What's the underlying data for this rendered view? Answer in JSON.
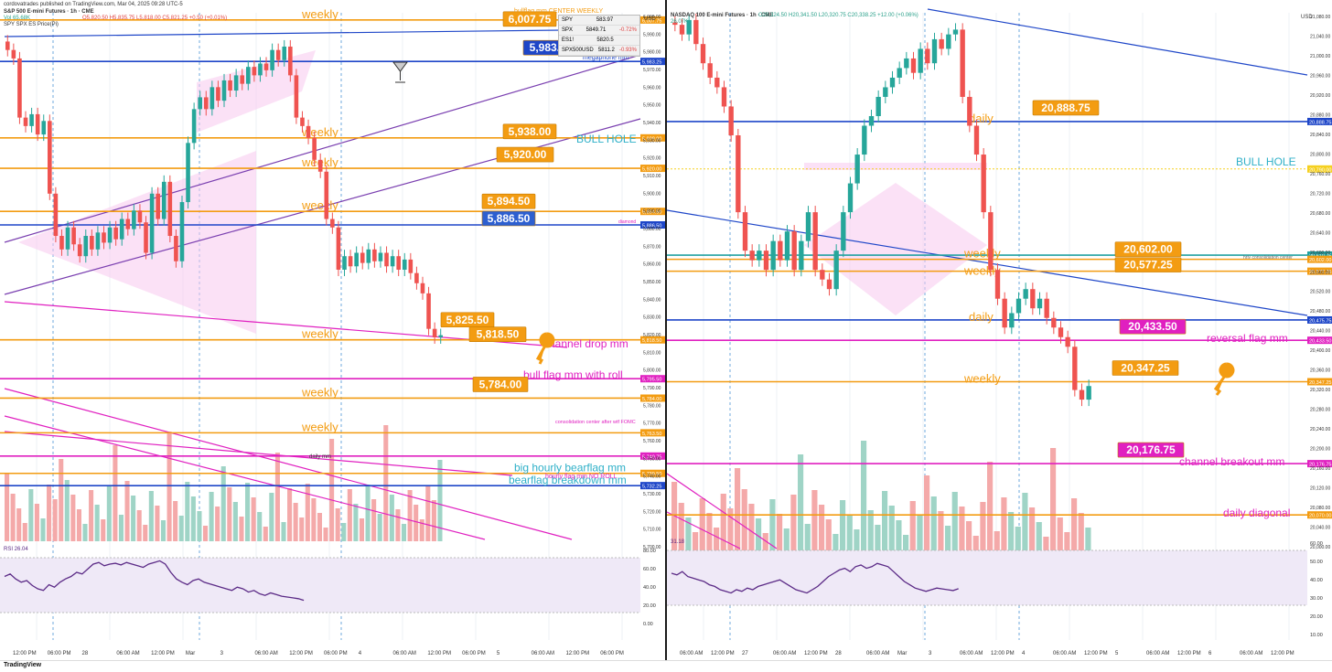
{
  "window": {
    "brand": "TradingView"
  },
  "left": {
    "published": "cordovatrades published on TradingView.com, Mar 04, 2025 09:28 UTC-5",
    "title": "S&P 500 E-mini Futures · 1h · CME",
    "ohlc": "O5,820.50 H5,835.75 L5,818.00 C5,821.25 +0.50 (+0.01%)",
    "vol": "Vol 65.68K",
    "overlay": "SPY SPX ES Price(Pi)",
    "currency": "USD",
    "rsi_label": "RSI 26.04",
    "mini_table": [
      {
        "sym": "SPY",
        "val": "583.97",
        "chg": ""
      },
      {
        "sym": "SPX",
        "val": "5849.71",
        "chg": "-0.72%"
      },
      {
        "sym": "ES1!",
        "val": "5820.5",
        "chg": ""
      },
      {
        "sym": "SPX500USD",
        "val": "5811.2",
        "chg": "-0.93%"
      }
    ],
    "annotations": {
      "top": "bullflag mm CENTER WEEKLY",
      "megaphone": "megaphone mm",
      "bull_hole": "BULL HOLE",
      "diamond": "diamond",
      "channel_drop": "channel drop mm",
      "bull_flag": "bull flag mm with roll",
      "consolidation": "consolidation center after wtf FOMC",
      "daily_mm": "daily mm",
      "big_bearflag": "big hourly bearflag mm",
      "hourly_flag": "hourly flag mm NO ROLL",
      "bearflag_breakdown": "bearflag breakdown mm",
      "weekly": "weekly"
    },
    "callouts": [
      "6,007.75",
      "5,983.25",
      "5,938.00",
      "5,920.00",
      "5,894.50",
      "5,886.50",
      "5,825.50",
      "5,818.50",
      "5,784.00"
    ],
    "axis_ticks": [
      "12:00 PM",
      "06:00 PM",
      "28",
      "06:00 AM",
      "12:00 PM",
      "Mar",
      "3",
      "06:00 AM",
      "12:00 PM",
      "06:00 PM",
      "4",
      "06:00 AM",
      "12:00 PM",
      "06:00 PM",
      "5",
      "06:00 AM",
      "12:00 PM",
      "06:00 PM"
    ],
    "price_ticks": [
      "6,000.00",
      "5,990.00",
      "5,980.00",
      "5,970.00",
      "5,960.00",
      "5,950.00",
      "5,940.00",
      "5,930.00",
      "5,920.00",
      "5,910.00",
      "5,900.00",
      "5,890.00",
      "5,880.00",
      "5,870.00",
      "5,860.00",
      "5,850.00",
      "5,840.00",
      "5,830.00",
      "5,820.00",
      "5,810.00",
      "5,800.00",
      "5,790.00",
      "5,780.00",
      "5,770.00",
      "5,760.00",
      "5,750.00",
      "5,740.00",
      "5,730.00",
      "5,720.00",
      "5,710.00",
      "5,700.00"
    ],
    "rsi_ticks": [
      "80.00",
      "60.00",
      "40.00",
      "20.00",
      "0.00"
    ]
  },
  "right": {
    "title": "NASDAQ 100 E-mini Futures · 1h · CME",
    "ohlc": "O20,324.50 H20,341.50 L20,320.75 C20,338.25 +12.00 (+0.06%)",
    "vol": "26.07K",
    "currency": "USD",
    "rsi_label": "31.18",
    "annotations": {
      "daily": "daily",
      "weekly": "weekly",
      "bull_hole": "BULL HOLE",
      "reversal": "reversal flag mm",
      "channel_breakout": "channel breakout mm",
      "daily_diagonal": "daily diagonal",
      "consolidation": "hrly consolidation center"
    },
    "callouts": [
      "20,888.75",
      "20,602.00",
      "20,577.25",
      "20,433.50",
      "20,347.25",
      "20,176.75"
    ],
    "axis_ticks": [
      "06:00 AM",
      "12:00 PM",
      "27",
      "06:00 AM",
      "12:00 PM",
      "28",
      "06:00 AM",
      "Mar",
      "3",
      "06:00 AM",
      "12:00 PM",
      "4",
      "06:00 AM",
      "12:00 PM",
      "5",
      "06:00 AM",
      "12:00 PM",
      "6",
      "06:00 AM",
      "12:00 PM"
    ],
    "price_ticks": [
      "21,080.00",
      "21,040.00",
      "21,000.00",
      "20,960.00",
      "20,920.00",
      "20,880.00",
      "20,840.00",
      "20,800.00",
      "20,760.00",
      "20,720.00",
      "20,680.00",
      "20,640.00",
      "20,600.00",
      "20,560.00",
      "20,520.00",
      "20,480.00",
      "20,440.00",
      "20,400.00",
      "20,360.00",
      "20,320.00",
      "20,280.00",
      "20,240.00",
      "20,200.00",
      "20,160.00",
      "20,120.00",
      "20,080.00",
      "20,040.00",
      "20,000.00"
    ],
    "rsi_ticks": [
      "60.00",
      "50.00",
      "40.00",
      "30.00",
      "20.00",
      "10.00"
    ]
  },
  "chart_data": [
    {
      "type": "candlestick",
      "title": "S&P 500 E-mini Futures · 1h · CME",
      "ylim": [
        5695,
        6012
      ],
      "levels": [
        {
          "label": "weekly",
          "value": 6007.75,
          "color": "#f39c12"
        },
        {
          "label": "megaphone mm",
          "value": 5983.25,
          "color": "#1e46c8"
        },
        {
          "label": "weekly",
          "value": 5938.0,
          "color": "#f39c12"
        },
        {
          "label": "weekly",
          "value": 5920.0,
          "color": "#f39c12"
        },
        {
          "label": "weekly",
          "value": 5894.5,
          "color": "#f39c12"
        },
        {
          "label": "diamond",
          "value": 5886.5,
          "color": "#1e46c8"
        },
        {
          "label": "weekly",
          "value": 5818.5,
          "color": "#f39c12"
        },
        {
          "label": "bull flag mm with roll",
          "value": 5795.5,
          "color": "#e020c0"
        },
        {
          "label": "weekly",
          "value": 5784.0,
          "color": "#f39c12"
        },
        {
          "label": "weekly",
          "value": 5763.5,
          "color": "#f39c12"
        },
        {
          "label": "daily mm",
          "value": 5749.75,
          "color": "#e020c0"
        },
        {
          "label": "big hourly bearflag mm",
          "value": 5739.5,
          "color": "#f39c12"
        },
        {
          "label": "bearflag breakdown mm",
          "value": 5732.25,
          "color": "#1e46c8"
        }
      ],
      "candles": [
        5990,
        5985,
        5950,
        5945,
        5952,
        5940,
        5948,
        5905,
        5880,
        5872,
        5885,
        5875,
        5868,
        5880,
        5872,
        5882,
        5876,
        5885,
        5878,
        5890,
        5884,
        5895,
        5888,
        5870,
        5905,
        5890,
        5912,
        5880,
        5865,
        5900,
        5935,
        5955,
        5962,
        5955,
        5968,
        5960,
        5972,
        5966,
        5975,
        5970,
        5980,
        5975,
        5982,
        5978,
        5990,
        5984,
        5992,
        5975,
        5950,
        5945,
        5938,
        5925,
        5918,
        5890,
        5885,
        5860,
        5868,
        5862,
        5870,
        5864,
        5872,
        5865,
        5870,
        5862,
        5868,
        5860,
        5866,
        5858,
        5852,
        5846,
        5825,
        5820,
        5821.25
      ],
      "rsi": [
        55,
        58,
        52,
        48,
        50,
        44,
        40,
        38,
        45,
        42,
        48,
        52,
        55,
        60,
        58,
        64,
        70,
        72,
        68,
        70,
        71,
        69,
        72,
        70,
        68,
        66,
        70,
        72,
        74,
        70,
        60,
        52,
        48,
        45,
        50,
        52,
        48,
        46,
        44,
        42,
        40,
        38,
        42,
        40,
        36,
        38,
        34,
        32,
        35,
        33,
        31,
        30,
        29,
        28,
        26.04
      ]
    },
    {
      "type": "candlestick",
      "title": "NASDAQ 100 E-mini Futures · 1h · CME",
      "ylim": [
        20000,
        21115
      ],
      "levels": [
        {
          "label": "daily",
          "value": 20888.75,
          "color": "#1e46c8"
        },
        {
          "label": "BULL HOLE",
          "value": 20790.0,
          "color": "#f5d020"
        },
        {
          "label": "hrly consolidation center",
          "value": 20610.75,
          "color": "#20a0a0"
        },
        {
          "label": "weekly",
          "value": 20602.0,
          "color": "#f39c12"
        },
        {
          "label": "weekly",
          "value": 20577.25,
          "color": "#f39c12"
        },
        {
          "label": "daily",
          "value": 20475.75,
          "color": "#1e46c8"
        },
        {
          "label": "reversal flag mm",
          "value": 20433.5,
          "color": "#e020c0"
        },
        {
          "label": "weekly",
          "value": 20347.25,
          "color": "#f39c12"
        },
        {
          "label": "channel breakout mm",
          "value": 20176.75,
          "color": "#e020c0"
        },
        {
          "label": "daily diagonal",
          "value": 20070.0,
          "color": "#f39c12"
        }
      ],
      "candles": [
        21090,
        21070,
        21100,
        21050,
        21010,
        20980,
        20960,
        20920,
        20860,
        20700,
        20620,
        20600,
        20620,
        20580,
        20640,
        20600,
        20660,
        20580,
        20640,
        20700,
        20580,
        20560,
        20540,
        20620,
        20700,
        20760,
        20820,
        20880,
        20900,
        20940,
        20960,
        20980,
        21000,
        21020,
        20990,
        21040,
        21010,
        21060,
        21040,
        21070,
        21080,
        20940,
        20880,
        20820,
        20700,
        20580,
        20520,
        20460,
        20490,
        20520,
        20540,
        20500,
        20520,
        20480,
        20460,
        20440,
        20420,
        20330,
        20310,
        20338.25
      ],
      "rsi": [
        50,
        48,
        52,
        46,
        44,
        42,
        40,
        36,
        34,
        30,
        28,
        26,
        30,
        28,
        32,
        30,
        34,
        36,
        38,
        40,
        42,
        38,
        34,
        30,
        28,
        26,
        30,
        34,
        40,
        46,
        50,
        54,
        56,
        52,
        58,
        60,
        56,
        58,
        62,
        60,
        58,
        52,
        46,
        40,
        36,
        32,
        30,
        28,
        30,
        32,
        31,
        30,
        29,
        31.18
      ]
    }
  ]
}
